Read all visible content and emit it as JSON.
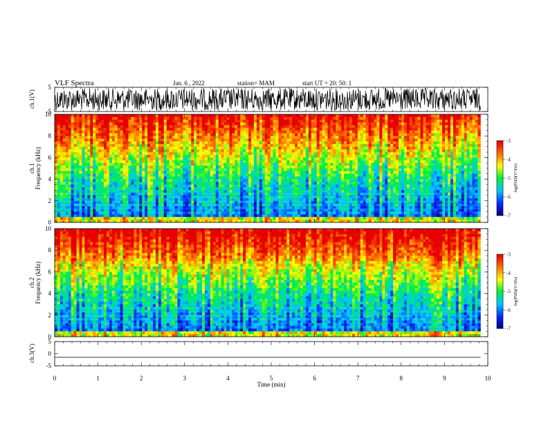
{
  "header": {
    "title": "VLF Spectra",
    "date": "Jan. 6 , 2022",
    "station": "station= MAM",
    "start": "start UT = 20: 50: 1"
  },
  "chart_data": [
    {
      "type": "line",
      "panel": "ch1-waveform",
      "ylabel": "ch.1(V)",
      "ylim": [
        -5,
        5
      ],
      "yticks": [
        "5",
        "-5"
      ],
      "description_values": "dense noise waveform filling roughly -4 to +4 V"
    },
    {
      "type": "heatmap",
      "panel": "ch1-spectrogram",
      "ylabel_line1": "ch.1",
      "ylabel_line2": "Frequency (kHz)",
      "ylim": [
        0,
        10
      ],
      "yticks": [
        "0",
        "2",
        "4",
        "6",
        "8",
        "10"
      ],
      "colorbar": {
        "label": "log(PSD)(V²/Hz)",
        "range": [
          -7,
          -3
        ],
        "ticks": [
          "-3",
          "-4",
          "-5",
          "-6",
          "-7"
        ]
      }
    },
    {
      "type": "heatmap",
      "panel": "ch2-spectrogram",
      "ylabel_line1": "ch.2",
      "ylabel_line2": "Frequency (kHz)",
      "ylim": [
        0,
        10
      ],
      "yticks": [
        "0",
        "2",
        "4",
        "6",
        "8",
        "10"
      ],
      "colorbar": {
        "label": "log(PSD)(V²/Hz)",
        "range": [
          -7,
          -3
        ],
        "ticks": [
          "-3",
          "-4",
          "-5",
          "-6",
          "-7"
        ]
      }
    },
    {
      "type": "line",
      "panel": "ch3-waveform",
      "ylabel": "ch.3(V)",
      "ylim": [
        -5,
        5
      ],
      "yticks": [
        "5",
        "0",
        "-5"
      ],
      "values_constant": -1.5
    }
  ],
  "xaxis": {
    "label": "Time (min)",
    "xlim": [
      0,
      10
    ],
    "ticks": [
      "0",
      "1",
      "2",
      "3",
      "4",
      "5",
      "6",
      "7",
      "8",
      "9",
      "10"
    ],
    "data_end": 9.83
  }
}
